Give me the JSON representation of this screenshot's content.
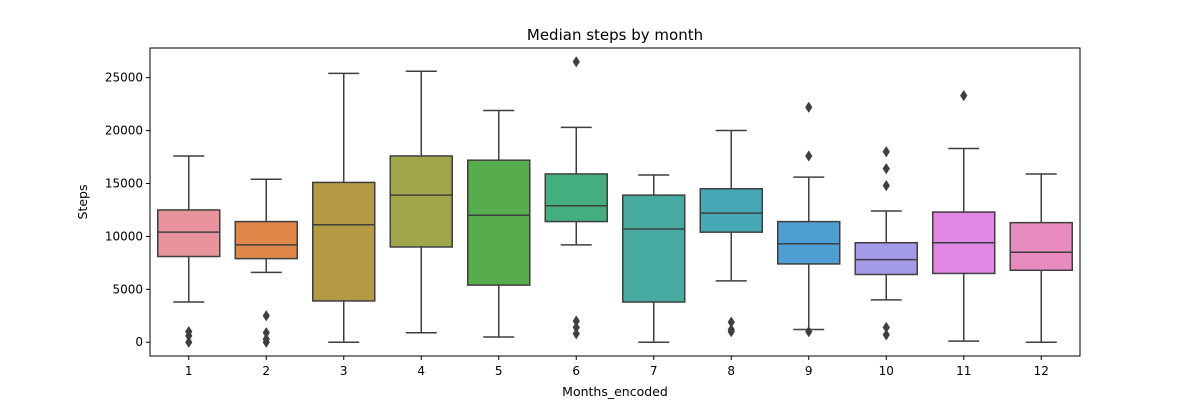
{
  "chart_data": {
    "type": "box",
    "title": "Median steps by month",
    "xlabel": "Months_encoded",
    "ylabel": "Steps",
    "ylim": [
      -1300,
      27800
    ],
    "y_ticks": [
      0,
      5000,
      10000,
      15000,
      20000,
      25000
    ],
    "categories": [
      "1",
      "2",
      "3",
      "4",
      "5",
      "6",
      "7",
      "8",
      "9",
      "10",
      "11",
      "12"
    ],
    "colors": [
      "#e9949d",
      "#e0874a",
      "#b59a45",
      "#a2a64a",
      "#57ac4d",
      "#45ae7f",
      "#47aaa0",
      "#46a8b4",
      "#4f9ed4",
      "#a39be8",
      "#df87e3",
      "#e88bbf"
    ],
    "boxes": [
      {
        "whisker_low": 3800,
        "q1": 8100,
        "median": 10400,
        "q3": 12500,
        "whisker_high": 17600,
        "outliers": [
          0,
          600,
          1000
        ]
      },
      {
        "whisker_low": 6600,
        "q1": 7900,
        "median": 9200,
        "q3": 11400,
        "whisker_high": 15400,
        "outliers": [
          0,
          300,
          900,
          2500
        ]
      },
      {
        "whisker_low": 0,
        "q1": 3900,
        "median": 11100,
        "q3": 15100,
        "whisker_high": 25400,
        "outliers": []
      },
      {
        "whisker_low": 900,
        "q1": 9000,
        "median": 13900,
        "q3": 17600,
        "whisker_high": 25600,
        "outliers": []
      },
      {
        "whisker_low": 500,
        "q1": 5400,
        "median": 12000,
        "q3": 17200,
        "whisker_high": 21900,
        "outliers": []
      },
      {
        "whisker_low": 9200,
        "q1": 11400,
        "median": 12900,
        "q3": 15900,
        "whisker_high": 20300,
        "outliers": [
          800,
          1400,
          2000,
          26500
        ]
      },
      {
        "whisker_low": 0,
        "q1": 3800,
        "median": 10700,
        "q3": 13900,
        "whisker_high": 15800,
        "outliers": []
      },
      {
        "whisker_low": 5800,
        "q1": 10400,
        "median": 12200,
        "q3": 14500,
        "whisker_high": 20000,
        "outliers": [
          1000,
          1200,
          1900
        ]
      },
      {
        "whisker_low": 1200,
        "q1": 7400,
        "median": 9300,
        "q3": 11400,
        "whisker_high": 15600,
        "outliers": [
          1000,
          17600,
          22200
        ]
      },
      {
        "whisker_low": 4000,
        "q1": 6400,
        "median": 7800,
        "q3": 9400,
        "whisker_high": 12400,
        "outliers": [
          700,
          1400,
          14800,
          16400,
          18000
        ]
      },
      {
        "whisker_low": 100,
        "q1": 6500,
        "median": 9400,
        "q3": 12300,
        "whisker_high": 18300,
        "outliers": [
          23300
        ]
      },
      {
        "whisker_low": 0,
        "q1": 6800,
        "median": 8500,
        "q3": 11300,
        "whisker_high": 15900,
        "outliers": []
      }
    ]
  }
}
